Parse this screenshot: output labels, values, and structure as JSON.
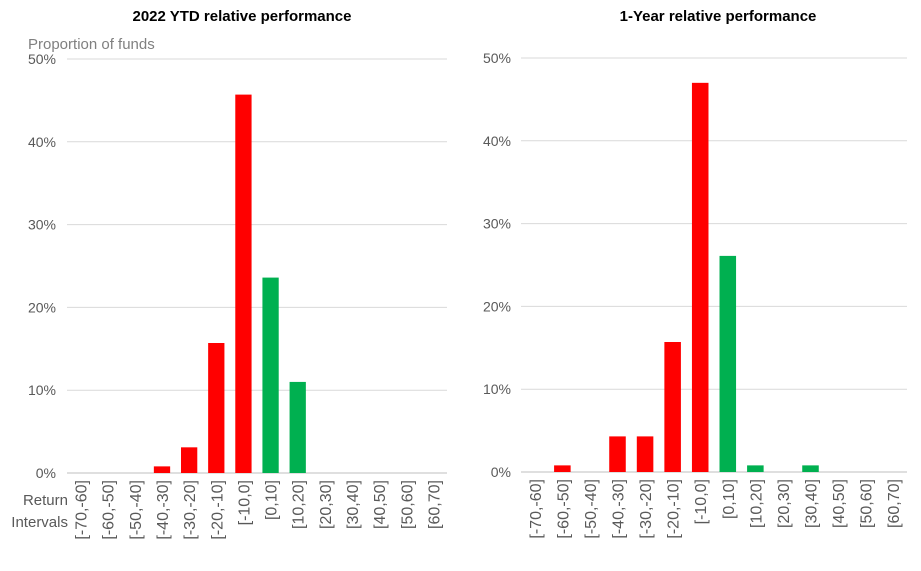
{
  "chart_data": [
    {
      "type": "bar",
      "title": "2022 YTD relative performance",
      "ylabel": "Proportion of funds",
      "xlabel": "Return Intervals",
      "ylim": [
        0,
        0.5
      ],
      "ytick_values": [
        0,
        0.1,
        0.2,
        0.3,
        0.4,
        0.5
      ],
      "ytick_labels": [
        "0%",
        "10%",
        "20%",
        "30%",
        "40%",
        "50%"
      ],
      "categories": [
        "[-70,-60]",
        "[-60,-50]",
        "[-50,-40]",
        "[-40,-30]",
        "[-30,-20]",
        "[-20,-10]",
        "[-10,0]",
        "[0,10]",
        "[10,20]",
        "[20,30]",
        "[30,40]",
        "[40,50]",
        "[50,60]",
        "[60,70]"
      ],
      "values": [
        0,
        0,
        0,
        0.008,
        0.031,
        0.157,
        0.457,
        0.236,
        0.11,
        0,
        0,
        0,
        0,
        0
      ],
      "bar_colors": [
        "#ff0000",
        "#ff0000",
        "#ff0000",
        "#ff0000",
        "#ff0000",
        "#ff0000",
        "#ff0000",
        "#00b050",
        "#00b050",
        "#00b050",
        "#00b050",
        "#00b050",
        "#00b050",
        "#00b050"
      ],
      "grid": true,
      "legend": "none"
    },
    {
      "type": "bar",
      "title": "1-Year relative performance",
      "ylim": [
        0,
        0.5
      ],
      "ytick_values": [
        0,
        0.1,
        0.2,
        0.3,
        0.4,
        0.5
      ],
      "ytick_labels": [
        "0%",
        "10%",
        "20%",
        "30%",
        "40%",
        "50%"
      ],
      "categories": [
        "[-70,-60]",
        "[-60,-50]",
        "[-50,-40]",
        "[-40,-30]",
        "[-30,-20]",
        "[-20,-10]",
        "[-10,0]",
        "[0,10]",
        "[10,20]",
        "[20,30]",
        "[30,40]",
        "[40,50]",
        "[50,60]",
        "[60,70]"
      ],
      "values": [
        0,
        0.008,
        0,
        0.043,
        0.043,
        0.157,
        0.47,
        0.261,
        0.008,
        0,
        0.008,
        0,
        0,
        0
      ],
      "bar_colors": [
        "#ff0000",
        "#ff0000",
        "#ff0000",
        "#ff0000",
        "#ff0000",
        "#ff0000",
        "#ff0000",
        "#00b050",
        "#00b050",
        "#00b050",
        "#00b050",
        "#00b050",
        "#00b050",
        "#00b050"
      ],
      "grid": true,
      "legend": "none"
    }
  ],
  "colors": {
    "negative": "#ff0000",
    "positive": "#00b050",
    "gridline": "#d9d9d9",
    "axis_text": "#595959",
    "title_text": "#000000"
  }
}
